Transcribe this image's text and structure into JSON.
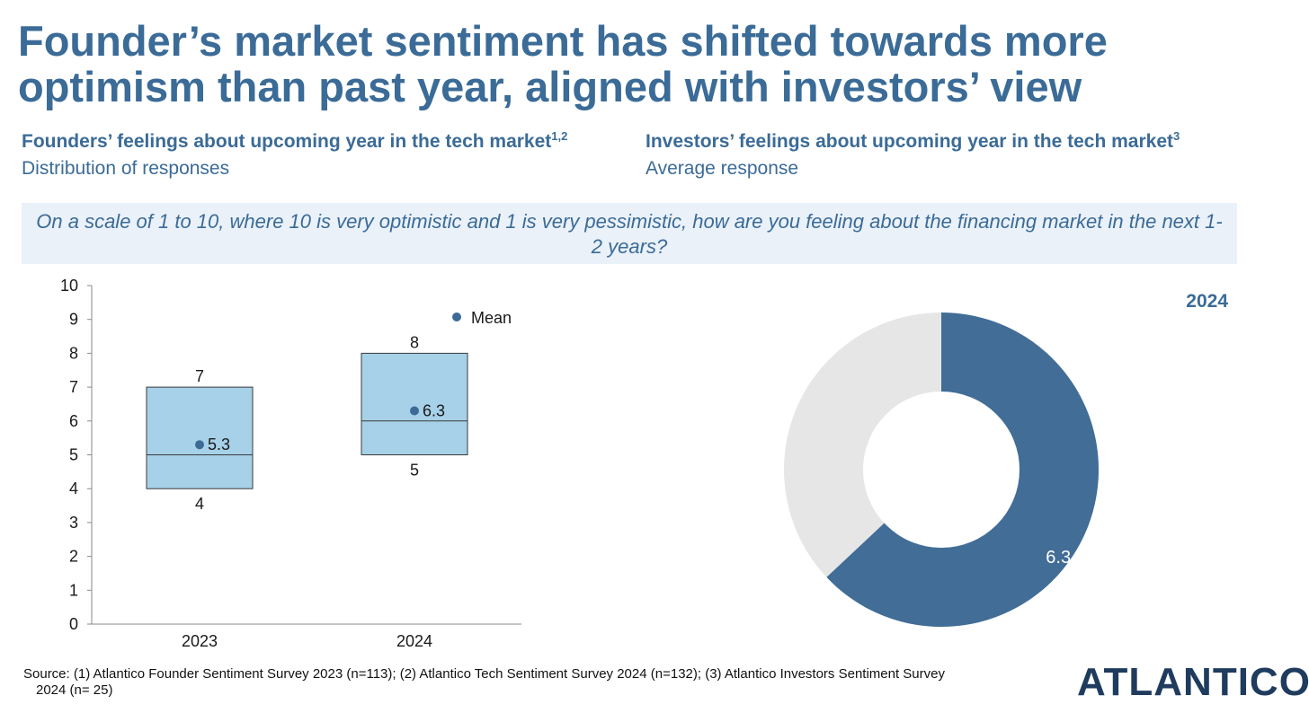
{
  "title": "Founder’s market sentiment has shifted towards more optimism than past year, aligned with investors’ view",
  "left_panel": {
    "heading": "Founders’ feelings about upcoming year in the tech market",
    "heading_sup": "1,2",
    "subheading": "Distribution of responses"
  },
  "right_panel": {
    "heading": "Investors’ feelings about upcoming year in the tech market",
    "heading_sup": "3",
    "subheading": "Average response"
  },
  "question": "On a scale of 1 to 10, where 10 is very optimistic and 1 is very pessimistic, how are you feeling about the financing market in the next 1-2 years?",
  "footer": {
    "line1": "Source: (1) Atlantico Founder Sentiment Survey 2023 (n=113); (2) Atlantico Tech Sentiment Survey 2024 (n=132); (3) Atlantico Investors Sentiment Survey",
    "line2": "2024 (n= 25)"
  },
  "logo": "ATLANTICO",
  "colors": {
    "title": "#3b6b97",
    "box_fill": "#a6d1e8",
    "box_stroke": "#3a3a3a",
    "mean_dot": "#3d6a96",
    "donut_value": "#416d97",
    "donut_rest": "#e6e6e6",
    "question_bg": "#eaf1f9"
  },
  "chart_data": [
    {
      "type": "box",
      "categories": [
        "2023",
        "2024"
      ],
      "boxes": [
        {
          "category": "2023",
          "low": 4,
          "median": 5,
          "high": 7,
          "mean": 5.3,
          "low_label": "4",
          "high_label": "7",
          "mean_label": "5.3"
        },
        {
          "category": "2024",
          "low": 5,
          "median": 6,
          "high": 8,
          "mean": 6.3,
          "low_label": "5",
          "high_label": "8",
          "mean_label": "6.3"
        }
      ],
      "ylim": [
        0,
        10
      ],
      "yticks": [
        "0",
        "1",
        "2",
        "3",
        "4",
        "5",
        "6",
        "7",
        "8",
        "9",
        "10"
      ],
      "legend": {
        "label": "Mean",
        "position": "top-right"
      },
      "grid": false
    },
    {
      "type": "pie",
      "variant": "donut",
      "label": "2024",
      "value": 6.3,
      "max": 10,
      "value_label": "6.3"
    }
  ]
}
